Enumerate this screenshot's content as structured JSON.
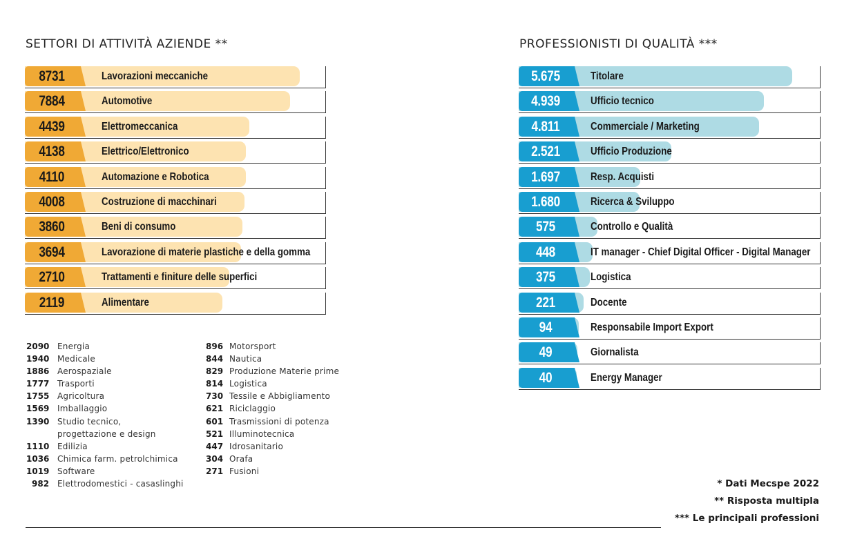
{
  "chart_data": [
    {
      "type": "bar",
      "title": "SETTORI DI ATTIVITÀ AZIENDE **",
      "categories": [
        "Lavorazioni meccaniche",
        "Automotive",
        "Elettromeccanica",
        "Elettrico/Elettronico",
        "Automazione e Robotica",
        "Costruzione di macchinari",
        "Beni di consumo",
        "Lavorazione di materie plastiche e della gomma",
        "Trattamenti e finiture delle superfici",
        "Alimentare"
      ],
      "values": [
        8731,
        7884,
        4439,
        4138,
        4110,
        4008,
        3860,
        3694,
        2710,
        2119
      ],
      "value_labels": [
        "8731",
        "7884",
        "4439",
        "4138",
        "4110",
        "4008",
        "3860",
        "3694",
        "2710",
        "2119"
      ],
      "colors": {
        "value_box": "#f0a935",
        "bar": "#fde3b1"
      }
    },
    {
      "type": "bar",
      "title": "PROFESSIONISTI DI QUALITÀ ***",
      "categories": [
        "Titolare",
        "Ufficio tecnico",
        "Commerciale / Marketing",
        "Ufficio Produzione",
        "Resp. Acquisti",
        "Ricerca & Sviluppo",
        "Controllo e Qualità",
        "IT manager - Chief Digital Officer - Digital Manager",
        "Logistica",
        "Docente",
        "Responsabile Import Export",
        "Giornalista",
        "Energy Manager"
      ],
      "values": [
        5675,
        4939,
        4811,
        2521,
        1697,
        1680,
        575,
        448,
        375,
        221,
        94,
        49,
        40
      ],
      "value_labels": [
        "5.675",
        "4.939",
        "4.811",
        "2.521",
        "1.697",
        "1.680",
        "575",
        "448",
        "375",
        "221",
        "94",
        "49",
        "40"
      ],
      "colors": {
        "value_box": "#189ed0",
        "bar": "#aedbe4"
      }
    }
  ],
  "other_sectors": {
    "col1": [
      {
        "value": "2090",
        "name": "Energia"
      },
      {
        "value": "1940",
        "name": "Medicale"
      },
      {
        "value": "1886",
        "name": "Aerospaziale"
      },
      {
        "value": "1777",
        "name": "Trasporti"
      },
      {
        "value": "1755",
        "name": "Agricoltura"
      },
      {
        "value": "1569",
        "name": "Imballaggio"
      },
      {
        "value": "1390",
        "name": "Studio tecnico,",
        "name2": "progettazione e design"
      },
      {
        "value": "1110",
        "name": "Edilizia"
      },
      {
        "value": "1036",
        "name": "Chimica farm. petrolchimica"
      },
      {
        "value": "1019",
        "name": "Software"
      },
      {
        "value": "982",
        "name": "Elettrodomestici - casaslinghi"
      }
    ],
    "col2": [
      {
        "value": "896",
        "name": "Motorsport"
      },
      {
        "value": "844",
        "name": "Nautica"
      },
      {
        "value": "829",
        "name": "Produzione Materie prime"
      },
      {
        "value": "814",
        "name": "Logistica"
      },
      {
        "value": "730",
        "name": "Tessile e Abbigliamento"
      },
      {
        "value": "621",
        "name": "Riciclaggio"
      },
      {
        "value": "601",
        "name": "Trasmissioni di potenza"
      },
      {
        "value": "521",
        "name": "Illuminotecnica"
      },
      {
        "value": "447",
        "name": "Idrosanitario"
      },
      {
        "value": "304",
        "name": "Orafa"
      },
      {
        "value": "271",
        "name": "Fusioni"
      }
    ]
  },
  "footnotes": [
    "* Dati Mecspe 2022",
    "** Risposta multipla",
    "*** Le principali professioni"
  ]
}
